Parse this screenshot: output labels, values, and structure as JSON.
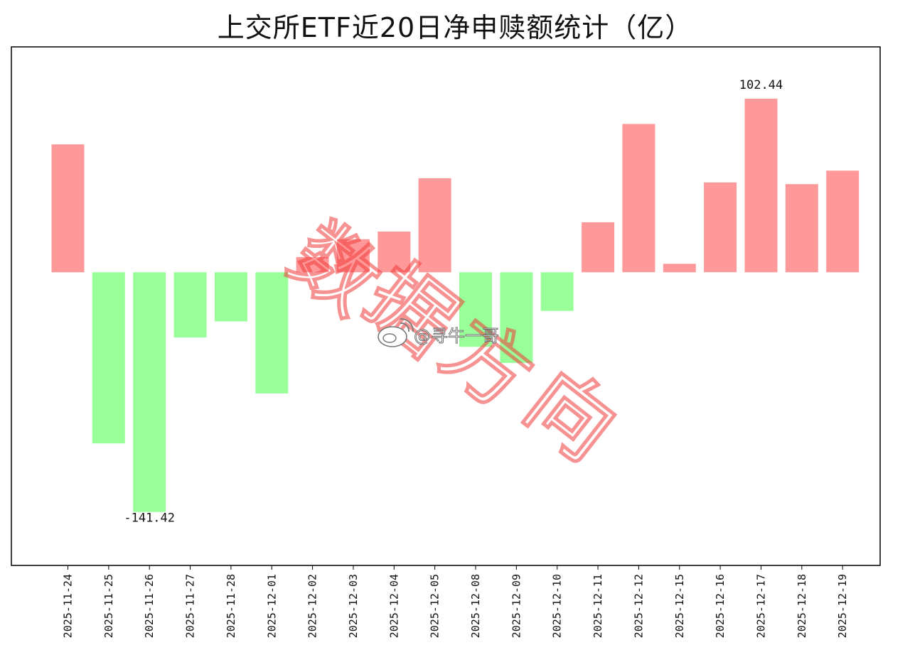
{
  "chart_data": {
    "type": "bar",
    "title": "上交所ETF近20日净申赎额统计（亿）",
    "xlabel": "",
    "ylabel": "",
    "categories": [
      "2025-11-24",
      "2025-11-25",
      "2025-11-26",
      "2025-11-27",
      "2025-11-28",
      "2025-12-01",
      "2025-12-02",
      "2025-12-03",
      "2025-12-04",
      "2025-12-05",
      "2025-12-08",
      "2025-12-09",
      "2025-12-10",
      "2025-12-11",
      "2025-12-12",
      "2025-12-15",
      "2025-12-16",
      "2025-12-17",
      "2025-12-18",
      "2025-12-19"
    ],
    "values": [
      75.5,
      -101.0,
      -141.42,
      -38.5,
      -29.0,
      -71.5,
      9.0,
      19.5,
      24.0,
      55.5,
      -44.0,
      -53.5,
      -22.8,
      29.5,
      87.5,
      5.0,
      53.0,
      102.44,
      52.0,
      60.0
    ],
    "ylim": [
      -173,
      133
    ],
    "positive_color": "#ff9999",
    "negative_color": "#99ff99",
    "grid": false,
    "legend": "none",
    "annotations": [
      {
        "category": "2025-12-17",
        "text": "102.44"
      },
      {
        "category": "2025-11-26",
        "text": "-141.42"
      }
    ]
  },
  "watermark": {
    "text": "数据方向",
    "color": "#f23a3a",
    "weibo_handle": "@寻牛一哥"
  }
}
